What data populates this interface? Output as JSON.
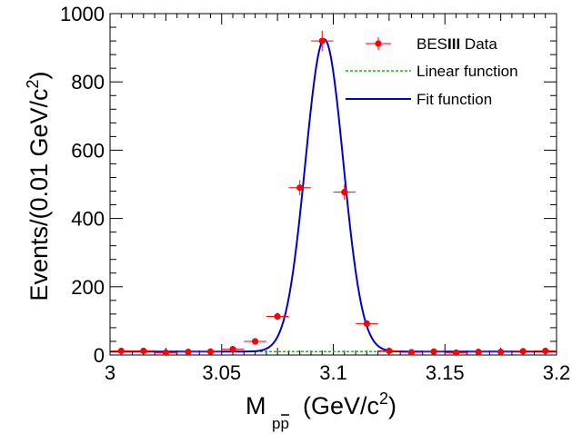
{
  "chart_data": {
    "type": "scatter",
    "xlim": [
      3.0,
      3.2
    ],
    "ylim": [
      0,
      1000
    ],
    "x_ticks": [
      3,
      3.05,
      3.1,
      3.15,
      3.2
    ],
    "x_tick_labels": [
      "3",
      "3.05",
      "3.1",
      "3.15",
      "3.2"
    ],
    "y_ticks": [
      0,
      200,
      400,
      600,
      800,
      1000
    ],
    "y_tick_labels": [
      "0",
      "200",
      "400",
      "600",
      "800",
      "1000"
    ],
    "xlabel": {
      "main": "M",
      "subscript": "pp",
      "bar": "¯",
      "units": "(GeV/c",
      "units_sup": "2",
      "units_close": ")"
    },
    "ylabel": {
      "main": "Events/(0.01 GeV/c",
      "sup": "2",
      "close": ")"
    },
    "legend": {
      "placement": "top-right",
      "entries": [
        {
          "prefix": "BES",
          "bold": "III",
          "suffix": " Data"
        },
        {
          "label": "Linear function"
        },
        {
          "label": "Fit function"
        }
      ]
    },
    "series": [
      {
        "name": "BESIII Data",
        "style": "points-with-errors",
        "color": "#ff0000",
        "x": [
          3.005,
          3.015,
          3.025,
          3.035,
          3.045,
          3.055,
          3.065,
          3.075,
          3.085,
          3.095,
          3.105,
          3.115,
          3.125,
          3.135,
          3.145,
          3.155,
          3.165,
          3.175,
          3.185,
          3.195
        ],
        "y": [
          12,
          12,
          7,
          9,
          10,
          17,
          40,
          113,
          490,
          920,
          477,
          92,
          12,
          8,
          10,
          7,
          9,
          9,
          11,
          12
        ],
        "yerr": [
          4,
          4,
          3,
          3,
          3,
          4,
          6,
          11,
          22,
          30,
          22,
          10,
          4,
          3,
          3,
          3,
          3,
          3,
          3,
          4
        ],
        "xerr": 0.005
      },
      {
        "name": "Linear function",
        "style": "dashed-line",
        "color": "#00cc00",
        "x": [
          3.0,
          3.2
        ],
        "y": [
          10,
          10
        ]
      },
      {
        "name": "Fit function",
        "style": "line",
        "color": "#0000cc",
        "model": "gaussian-plus-constant",
        "amplitude": 915,
        "mean": 3.096,
        "sigma": 0.0085,
        "baseline": 10
      }
    ]
  }
}
